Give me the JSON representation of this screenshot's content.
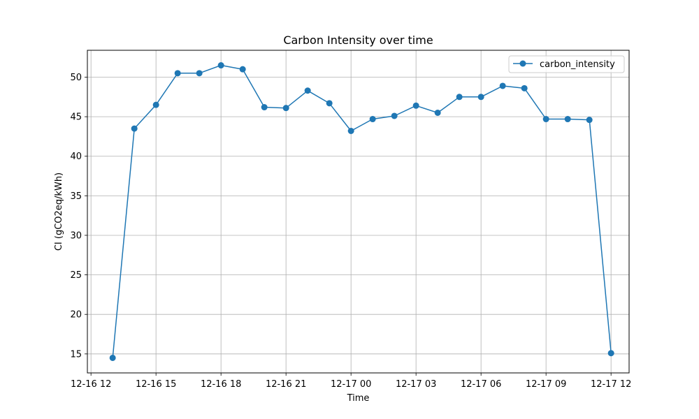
{
  "chart_data": {
    "type": "line",
    "title": "Carbon Intensity over time",
    "xlabel": "Time",
    "ylabel": "CI (gCO2eq/kWh)",
    "x_ticks": [
      "12-16 12",
      "12-16 15",
      "12-16 18",
      "12-16 21",
      "12-17 00",
      "12-17 03",
      "12-17 06",
      "12-17 09",
      "12-17 12"
    ],
    "y_ticks": [
      15,
      20,
      25,
      30,
      35,
      40,
      45,
      50
    ],
    "xlim": [
      "2023-12-16T11:50",
      "2023-12-17T12:50"
    ],
    "ylim": [
      12.6,
      53.4
    ],
    "grid": true,
    "legend_position": "top-right",
    "series": [
      {
        "name": "carbon_intensity",
        "color": "#1f77b4",
        "marker": "circle",
        "x": [
          "12-16 13",
          "12-16 14",
          "12-16 15",
          "12-16 16",
          "12-16 17",
          "12-16 18",
          "12-16 19",
          "12-16 20",
          "12-16 21",
          "12-16 22",
          "12-16 23",
          "12-17 00",
          "12-17 01",
          "12-17 02",
          "12-17 03",
          "12-17 04",
          "12-17 05",
          "12-17 06",
          "12-17 07",
          "12-17 08",
          "12-17 09",
          "12-17 10",
          "12-17 11",
          "12-17 12"
        ],
        "values": [
          14.5,
          43.5,
          46.5,
          50.5,
          50.5,
          51.5,
          51.0,
          46.2,
          46.1,
          48.3,
          46.7,
          43.2,
          44.7,
          45.1,
          46.4,
          45.5,
          47.5,
          47.5,
          48.9,
          48.6,
          44.7,
          44.7,
          44.6,
          15.1
        ]
      }
    ]
  }
}
